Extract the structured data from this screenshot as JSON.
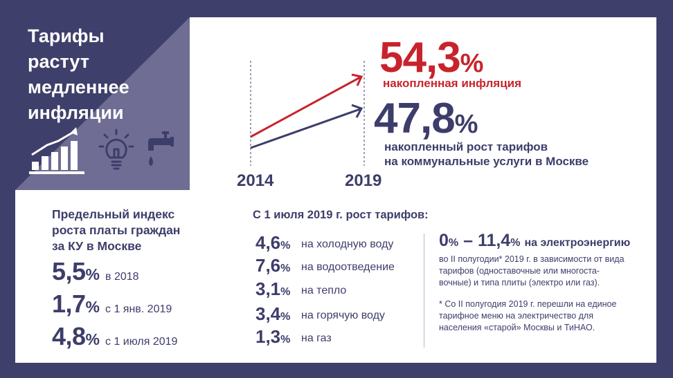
{
  "title": "Тарифы\nрастут\nмедленнее\nинфляции",
  "icons": [
    "growth-chart-icon",
    "lightbulb-icon",
    "water-tap-icon"
  ],
  "colors": {
    "background": "#3f3f6b",
    "panel": "#6f6d93",
    "dark_blue": "#3d3d6b",
    "red": "#c8232c"
  },
  "chart": {
    "years": [
      "2014",
      "2019"
    ],
    "inflation": {
      "value": "54,3",
      "unit": "%",
      "label": "накопленная инфляция"
    },
    "tariffs": {
      "value": "47,8",
      "unit": "%",
      "label": "накопленный рост тарифов\nна коммунальные услуги в Москве"
    }
  },
  "chart_data": {
    "type": "line",
    "x": [
      "2014",
      "2019"
    ],
    "series": [
      {
        "name": "накопленная инфляция",
        "values": [
          0,
          54.3
        ]
      },
      {
        "name": "накопленный рост тарифов на коммунальные услуги в Москве",
        "values": [
          0,
          47.8
        ]
      }
    ]
  },
  "index": {
    "heading": "Предельный индекс\nроста платы граждан\nза КУ в Москве",
    "rows": [
      {
        "value": "5,5",
        "unit": "%",
        "label": "в 2018"
      },
      {
        "value": "1,7",
        "unit": "%",
        "label": "с 1 янв. 2019"
      },
      {
        "value": "4,8",
        "unit": "%",
        "label": "с 1 июля 2019"
      }
    ]
  },
  "rates": {
    "heading": "С 1 июля 2019 г. рост тарифов:",
    "rows": [
      {
        "value": "4,6",
        "unit": "%",
        "label": "на холодную воду"
      },
      {
        "value": "7,6",
        "unit": "%",
        "label": "на водоотведение"
      },
      {
        "value": "3,1",
        "unit": "%",
        "label": "на тепло"
      },
      {
        "value": "3,4",
        "unit": "%",
        "label": "на горячую воду"
      },
      {
        "value": "1,3",
        "unit": "%",
        "label": "на газ"
      }
    ]
  },
  "electricity": {
    "from_value": "0",
    "from_unit": "%",
    "dash": " – ",
    "to_value": "11,4",
    "to_unit": "%",
    "label": "на электроэнергию",
    "description": "во II полугодии* 2019 г. в зависимости от вида\nтарифов (одноставочные или многоста-\nвочные) и типа плиты (электро или газ).",
    "footnote": "* Со II полугодия 2019 г. перешли на единое\nтарифное меню на электричество для\nнаселения «старой» Москвы и ТиНАО."
  }
}
